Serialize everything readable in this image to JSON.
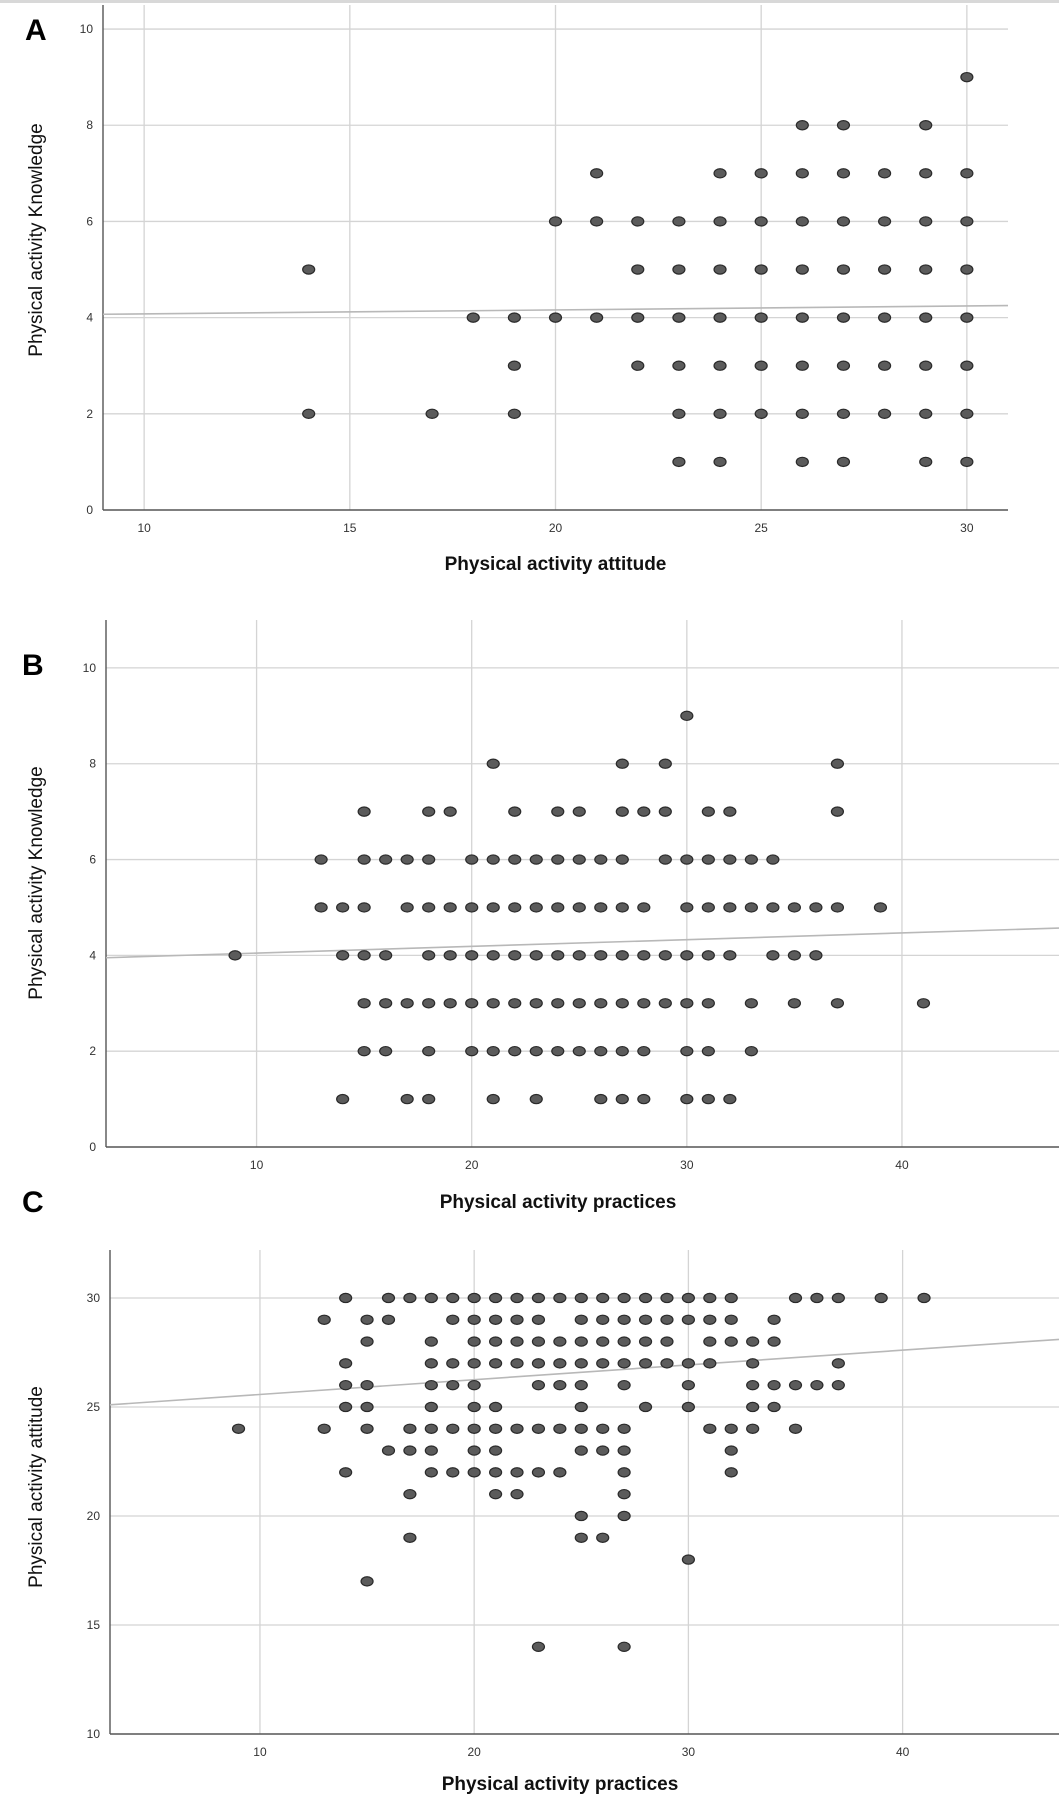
{
  "chart_data": [
    {
      "panel_label": "A",
      "type": "scatter",
      "xlabel": "Physical activity attitude",
      "ylabel": "Physical activity Knowledge",
      "xlim": [
        9,
        31
      ],
      "ylim": [
        0,
        10.5
      ],
      "xticks": [
        "10",
        "15",
        "20",
        "25",
        "30"
      ],
      "yticks": [
        "0",
        "2",
        "4",
        "6",
        "8",
        "10"
      ],
      "grid": true,
      "fit_line": {
        "x": [
          9,
          31
        ],
        "y": [
          4.07,
          4.25
        ]
      },
      "points": [
        [
          14,
          5
        ],
        [
          14,
          2
        ],
        [
          17,
          2
        ],
        [
          18,
          4
        ],
        [
          19,
          4
        ],
        [
          19,
          3
        ],
        [
          19,
          2
        ],
        [
          20,
          6
        ],
        [
          20,
          4
        ],
        [
          21,
          7
        ],
        [
          21,
          6
        ],
        [
          21,
          4
        ],
        [
          22,
          6
        ],
        [
          22,
          5
        ],
        [
          22,
          4
        ],
        [
          22,
          3
        ],
        [
          23,
          6
        ],
        [
          23,
          5
        ],
        [
          23,
          4
        ],
        [
          23,
          3
        ],
        [
          23,
          2
        ],
        [
          23,
          1
        ],
        [
          24,
          7
        ],
        [
          24,
          6
        ],
        [
          24,
          5
        ],
        [
          24,
          4
        ],
        [
          24,
          3
        ],
        [
          24,
          2
        ],
        [
          24,
          1
        ],
        [
          25,
          7
        ],
        [
          25,
          6
        ],
        [
          25,
          5
        ],
        [
          25,
          4
        ],
        [
          25,
          3
        ],
        [
          25,
          2
        ],
        [
          26,
          8
        ],
        [
          26,
          7
        ],
        [
          26,
          6
        ],
        [
          26,
          5
        ],
        [
          26,
          4
        ],
        [
          26,
          3
        ],
        [
          26,
          2
        ],
        [
          26,
          1
        ],
        [
          27,
          8
        ],
        [
          27,
          7
        ],
        [
          27,
          6
        ],
        [
          27,
          5
        ],
        [
          27,
          4
        ],
        [
          27,
          3
        ],
        [
          27,
          2
        ],
        [
          27,
          1
        ],
        [
          28,
          7
        ],
        [
          28,
          6
        ],
        [
          28,
          5
        ],
        [
          28,
          4
        ],
        [
          28,
          3
        ],
        [
          28,
          2
        ],
        [
          29,
          8
        ],
        [
          29,
          7
        ],
        [
          29,
          6
        ],
        [
          29,
          5
        ],
        [
          29,
          4
        ],
        [
          29,
          3
        ],
        [
          29,
          2
        ],
        [
          29,
          1
        ],
        [
          30,
          9
        ],
        [
          30,
          7
        ],
        [
          30,
          6
        ],
        [
          30,
          5
        ],
        [
          30,
          4
        ],
        [
          30,
          3
        ],
        [
          30,
          2
        ],
        [
          30,
          1
        ]
      ]
    },
    {
      "panel_label": "B",
      "type": "scatter",
      "xlabel": "Physical activity practices",
      "ylabel": "Physical activity Knowledge",
      "xlim": [
        3,
        47.3
      ],
      "ylim": [
        0,
        11
      ],
      "xticks": [
        "10",
        "20",
        "30",
        "40"
      ],
      "yticks": [
        "0",
        "2",
        "4",
        "6",
        "8",
        "10"
      ],
      "grid": true,
      "fit_line": {
        "x": [
          3,
          47.3
        ],
        "y": [
          3.95,
          4.57
        ]
      },
      "points": [
        [
          9,
          4
        ],
        [
          13,
          6
        ],
        [
          13,
          5
        ],
        [
          14,
          5
        ],
        [
          14,
          4
        ],
        [
          14,
          1
        ],
        [
          15,
          7
        ],
        [
          15,
          6
        ],
        [
          15,
          5
        ],
        [
          15,
          4
        ],
        [
          15,
          3
        ],
        [
          15,
          2
        ],
        [
          16,
          6
        ],
        [
          16,
          4
        ],
        [
          16,
          3
        ],
        [
          16,
          2
        ],
        [
          17,
          6
        ],
        [
          17,
          5
        ],
        [
          17,
          3
        ],
        [
          17,
          1
        ],
        [
          18,
          7
        ],
        [
          18,
          6
        ],
        [
          18,
          5
        ],
        [
          18,
          4
        ],
        [
          18,
          3
        ],
        [
          18,
          2
        ],
        [
          18,
          1
        ],
        [
          19,
          7
        ],
        [
          19,
          5
        ],
        [
          19,
          4
        ],
        [
          19,
          3
        ],
        [
          20,
          6
        ],
        [
          20,
          5
        ],
        [
          20,
          4
        ],
        [
          20,
          3
        ],
        [
          20,
          2
        ],
        [
          21,
          8
        ],
        [
          21,
          6
        ],
        [
          21,
          5
        ],
        [
          21,
          4
        ],
        [
          21,
          3
        ],
        [
          21,
          2
        ],
        [
          21,
          1
        ],
        [
          22,
          7
        ],
        [
          22,
          6
        ],
        [
          22,
          5
        ],
        [
          22,
          4
        ],
        [
          22,
          3
        ],
        [
          22,
          2
        ],
        [
          23,
          6
        ],
        [
          23,
          5
        ],
        [
          23,
          4
        ],
        [
          23,
          3
        ],
        [
          23,
          2
        ],
        [
          23,
          1
        ],
        [
          24,
          7
        ],
        [
          24,
          6
        ],
        [
          24,
          5
        ],
        [
          24,
          4
        ],
        [
          24,
          3
        ],
        [
          24,
          2
        ],
        [
          25,
          7
        ],
        [
          25,
          6
        ],
        [
          25,
          5
        ],
        [
          25,
          4
        ],
        [
          25,
          3
        ],
        [
          25,
          2
        ],
        [
          26,
          6
        ],
        [
          26,
          5
        ],
        [
          26,
          4
        ],
        [
          26,
          3
        ],
        [
          26,
          2
        ],
        [
          26,
          1
        ],
        [
          27,
          8
        ],
        [
          27,
          7
        ],
        [
          27,
          6
        ],
        [
          27,
          5
        ],
        [
          27,
          4
        ],
        [
          27,
          3
        ],
        [
          27,
          2
        ],
        [
          27,
          1
        ],
        [
          28,
          7
        ],
        [
          28,
          5
        ],
        [
          28,
          4
        ],
        [
          28,
          3
        ],
        [
          28,
          2
        ],
        [
          28,
          1
        ],
        [
          29,
          8
        ],
        [
          29,
          7
        ],
        [
          29,
          6
        ],
        [
          29,
          4
        ],
        [
          29,
          3
        ],
        [
          30,
          9
        ],
        [
          30,
          6
        ],
        [
          30,
          5
        ],
        [
          30,
          4
        ],
        [
          30,
          3
        ],
        [
          30,
          2
        ],
        [
          30,
          1
        ],
        [
          31,
          7
        ],
        [
          31,
          6
        ],
        [
          31,
          5
        ],
        [
          31,
          4
        ],
        [
          31,
          3
        ],
        [
          31,
          2
        ],
        [
          31,
          1
        ],
        [
          32,
          7
        ],
        [
          32,
          6
        ],
        [
          32,
          5
        ],
        [
          32,
          4
        ],
        [
          32,
          1
        ],
        [
          33,
          6
        ],
        [
          33,
          5
        ],
        [
          33,
          3
        ],
        [
          33,
          2
        ],
        [
          34,
          6
        ],
        [
          34,
          5
        ],
        [
          34,
          4
        ],
        [
          35,
          5
        ],
        [
          35,
          4
        ],
        [
          35,
          3
        ],
        [
          36,
          5
        ],
        [
          36,
          4
        ],
        [
          37,
          8
        ],
        [
          37,
          7
        ],
        [
          37,
          5
        ],
        [
          37,
          3
        ],
        [
          39,
          5
        ],
        [
          41,
          3
        ]
      ]
    },
    {
      "panel_label": "C",
      "type": "scatter",
      "xlabel": "Physical activity practices",
      "ylabel": "Physical activity attitude",
      "xlim": [
        3,
        47.3
      ],
      "ylim": [
        10,
        32.2
      ],
      "xticks": [
        "10",
        "20",
        "30",
        "40"
      ],
      "yticks": [
        "10",
        "15",
        "20",
        "25",
        "30"
      ],
      "grid": true,
      "fit_line": {
        "x": [
          3,
          47.3
        ],
        "y": [
          25.1,
          28.1
        ]
      },
      "points": [
        [
          9,
          24
        ],
        [
          13,
          29
        ],
        [
          13,
          24
        ],
        [
          14,
          30
        ],
        [
          14,
          27
        ],
        [
          14,
          26
        ],
        [
          14,
          25
        ],
        [
          14,
          22
        ],
        [
          15,
          29
        ],
        [
          15,
          28
        ],
        [
          15,
          26
        ],
        [
          15,
          25
        ],
        [
          15,
          24
        ],
        [
          15,
          17
        ],
        [
          16,
          30
        ],
        [
          16,
          29
        ],
        [
          16,
          23
        ],
        [
          17,
          30
        ],
        [
          17,
          24
        ],
        [
          17,
          23
        ],
        [
          17,
          21
        ],
        [
          17,
          19
        ],
        [
          18,
          30
        ],
        [
          18,
          28
        ],
        [
          18,
          27
        ],
        [
          18,
          26
        ],
        [
          18,
          25
        ],
        [
          18,
          24
        ],
        [
          18,
          23
        ],
        [
          18,
          22
        ],
        [
          19,
          30
        ],
        [
          19,
          29
        ],
        [
          19,
          27
        ],
        [
          19,
          26
        ],
        [
          19,
          24
        ],
        [
          19,
          22
        ],
        [
          20,
          30
        ],
        [
          20,
          29
        ],
        [
          20,
          28
        ],
        [
          20,
          27
        ],
        [
          20,
          26
        ],
        [
          20,
          25
        ],
        [
          20,
          24
        ],
        [
          20,
          23
        ],
        [
          20,
          22
        ],
        [
          21,
          30
        ],
        [
          21,
          29
        ],
        [
          21,
          28
        ],
        [
          21,
          27
        ],
        [
          21,
          25
        ],
        [
          21,
          24
        ],
        [
          21,
          23
        ],
        [
          21,
          22
        ],
        [
          21,
          21
        ],
        [
          22,
          30
        ],
        [
          22,
          29
        ],
        [
          22,
          28
        ],
        [
          22,
          27
        ],
        [
          22,
          24
        ],
        [
          22,
          22
        ],
        [
          22,
          21
        ],
        [
          23,
          30
        ],
        [
          23,
          29
        ],
        [
          23,
          28
        ],
        [
          23,
          27
        ],
        [
          23,
          26
        ],
        [
          23,
          24
        ],
        [
          23,
          22
        ],
        [
          23,
          14
        ],
        [
          24,
          30
        ],
        [
          24,
          28
        ],
        [
          24,
          27
        ],
        [
          24,
          26
        ],
        [
          24,
          24
        ],
        [
          24,
          22
        ],
        [
          25,
          30
        ],
        [
          25,
          29
        ],
        [
          25,
          28
        ],
        [
          25,
          27
        ],
        [
          25,
          26
        ],
        [
          25,
          25
        ],
        [
          25,
          24
        ],
        [
          25,
          23
        ],
        [
          25,
          20
        ],
        [
          25,
          19
        ],
        [
          26,
          30
        ],
        [
          26,
          29
        ],
        [
          26,
          28
        ],
        [
          26,
          27
        ],
        [
          26,
          24
        ],
        [
          26,
          23
        ],
        [
          26,
          19
        ],
        [
          27,
          30
        ],
        [
          27,
          29
        ],
        [
          27,
          28
        ],
        [
          27,
          27
        ],
        [
          27,
          26
        ],
        [
          27,
          24
        ],
        [
          27,
          23
        ],
        [
          27,
          22
        ],
        [
          27,
          21
        ],
        [
          27,
          20
        ],
        [
          27,
          14
        ],
        [
          28,
          30
        ],
        [
          28,
          29
        ],
        [
          28,
          28
        ],
        [
          28,
          27
        ],
        [
          28,
          25
        ],
        [
          29,
          30
        ],
        [
          29,
          29
        ],
        [
          29,
          28
        ],
        [
          29,
          27
        ],
        [
          30,
          30
        ],
        [
          30,
          29
        ],
        [
          30,
          27
        ],
        [
          30,
          26
        ],
        [
          30,
          25
        ],
        [
          30,
          18
        ],
        [
          31,
          30
        ],
        [
          31,
          29
        ],
        [
          31,
          28
        ],
        [
          31,
          27
        ],
        [
          31,
          24
        ],
        [
          32,
          30
        ],
        [
          32,
          29
        ],
        [
          32,
          28
        ],
        [
          32,
          24
        ],
        [
          32,
          23
        ],
        [
          32,
          22
        ],
        [
          33,
          28
        ],
        [
          33,
          27
        ],
        [
          33,
          26
        ],
        [
          33,
          25
        ],
        [
          33,
          24
        ],
        [
          34,
          29
        ],
        [
          34,
          28
        ],
        [
          34,
          26
        ],
        [
          34,
          25
        ],
        [
          35,
          30
        ],
        [
          35,
          26
        ],
        [
          35,
          24
        ],
        [
          36,
          30
        ],
        [
          36,
          26
        ],
        [
          37,
          30
        ],
        [
          37,
          27
        ],
        [
          37,
          26
        ],
        [
          39,
          30
        ],
        [
          41,
          30
        ]
      ]
    }
  ]
}
